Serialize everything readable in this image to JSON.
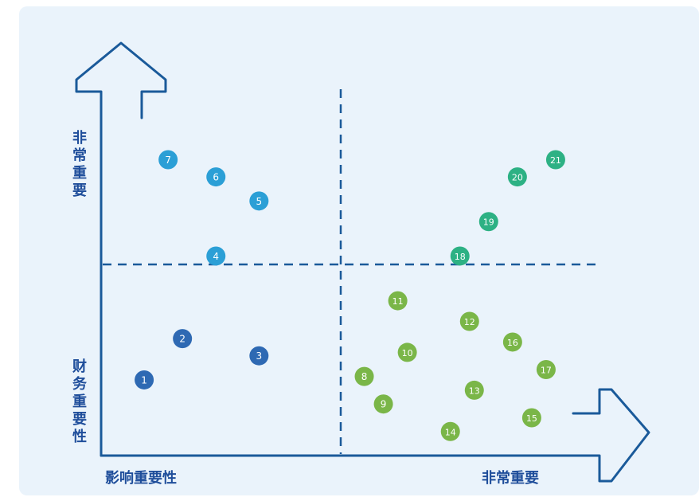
{
  "chart_data": {
    "type": "scatter",
    "title": "",
    "xlabel": "影响重要性",
    "ylabel": "财务重要性",
    "x_axis_labels": {
      "low": "影响重要性",
      "high": "非常重要"
    },
    "y_axis_labels": {
      "low": "财务重要性",
      "high": "非常重要"
    },
    "xlim": [
      0,
      10
    ],
    "ylim": [
      0,
      10
    ],
    "grid": false,
    "quadrant_dividers": {
      "x": 5,
      "y": 5
    },
    "colors": {
      "axis": "#1a5a9a",
      "divider": "#1a5a9a",
      "label": "#1f4e9b",
      "low_low": "#2e69b3",
      "low_high": "#2b9fd6",
      "high_high": "#2db184",
      "high_low": "#7ab648"
    },
    "points": [
      {
        "id": "1",
        "x": 0.9,
        "y": 2.2,
        "group": "low_low"
      },
      {
        "id": "2",
        "x": 1.7,
        "y": 3.4,
        "group": "low_low"
      },
      {
        "id": "3",
        "x": 3.3,
        "y": 2.9,
        "group": "low_low"
      },
      {
        "id": "4",
        "x": 2.4,
        "y": 5.8,
        "group": "low_high"
      },
      {
        "id": "5",
        "x": 3.3,
        "y": 7.4,
        "group": "low_high"
      },
      {
        "id": "6",
        "x": 2.4,
        "y": 8.1,
        "group": "low_high"
      },
      {
        "id": "7",
        "x": 1.4,
        "y": 8.6,
        "group": "low_high"
      },
      {
        "id": "8",
        "x": 5.5,
        "y": 2.3,
        "group": "high_low"
      },
      {
        "id": "9",
        "x": 5.9,
        "y": 1.5,
        "group": "high_low"
      },
      {
        "id": "10",
        "x": 6.4,
        "y": 3.0,
        "group": "high_low"
      },
      {
        "id": "11",
        "x": 6.2,
        "y": 4.5,
        "group": "high_low"
      },
      {
        "id": "12",
        "x": 7.7,
        "y": 3.9,
        "group": "high_low"
      },
      {
        "id": "13",
        "x": 7.8,
        "y": 1.9,
        "group": "high_low"
      },
      {
        "id": "14",
        "x": 7.3,
        "y": 0.7,
        "group": "high_low"
      },
      {
        "id": "15",
        "x": 9.0,
        "y": 1.1,
        "group": "high_low"
      },
      {
        "id": "16",
        "x": 8.6,
        "y": 3.3,
        "group": "high_low"
      },
      {
        "id": "17",
        "x": 9.3,
        "y": 2.5,
        "group": "high_low"
      },
      {
        "id": "18",
        "x": 7.5,
        "y": 5.8,
        "group": "high_high"
      },
      {
        "id": "19",
        "x": 8.1,
        "y": 6.8,
        "group": "high_high"
      },
      {
        "id": "20",
        "x": 8.7,
        "y": 8.1,
        "group": "high_high"
      },
      {
        "id": "21",
        "x": 9.5,
        "y": 8.6,
        "group": "high_high"
      }
    ]
  }
}
